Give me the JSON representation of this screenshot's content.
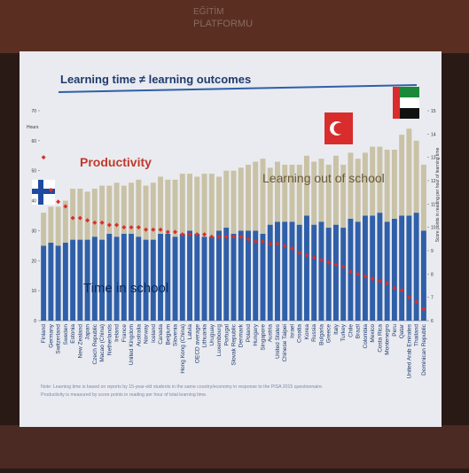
{
  "header_logo": [
    "EĞİTİM",
    "PLATFORMU"
  ],
  "chart_data": {
    "type": "bar",
    "title": "Learning time ≠ learning outcomes",
    "y_label": "Hours",
    "y2_label": "Score points in reading per hour of learning time",
    "annotations": [
      "Productivity",
      "Learning out of school",
      "Time in school"
    ],
    "note": [
      "Note: Learning time is based on reports by 15-year-old students in the same country/economy in response to the PISA 2015 questionnaire.",
      "Productivity is measured by score points in reading per hour of total learning time."
    ],
    "categories": [
      "Finland",
      "Germany",
      "Switzerland",
      "Sweden",
      "Estonia",
      "New Zealand",
      "Japan",
      "Czech Republic",
      "Macao (China)",
      "Netherlands",
      "Ireland",
      "France",
      "United Kingdom",
      "Australia",
      "Norway",
      "Iceland",
      "Canada",
      "Belgium",
      "Slovenia",
      "Hong Kong (China)",
      "Latvia",
      "OECD average",
      "Lithuania",
      "Uruguay",
      "Luxembourg",
      "Portugal",
      "Slovak Republic",
      "Denmark",
      "Poland",
      "Hungary",
      "Singapore",
      "Austria",
      "United States",
      "Chinese Taipei",
      "Israel",
      "Croatia",
      "Korea",
      "Russia",
      "Bulgaria",
      "Greece",
      "Italy",
      "Turkey",
      "Chile",
      "Brazil",
      "Colombia",
      "Mexico",
      "Costa Rica",
      "Montenegro",
      "Peru",
      "Qatar",
      "United Arab Emirates",
      "Thailand",
      "Dominican Republic"
    ],
    "series": [
      {
        "name": "Time in school",
        "color": "#2f5fa8",
        "values": [
          25,
          26,
          25,
          26,
          27,
          27,
          27,
          28,
          27,
          29,
          28,
          29,
          29,
          28,
          27,
          27,
          29,
          29,
          28,
          29,
          30,
          29,
          28,
          28,
          30,
          31,
          29,
          30,
          30,
          30,
          29,
          32,
          33,
          33,
          33,
          32,
          35,
          32,
          33,
          31,
          32,
          31,
          34,
          33,
          35,
          35,
          36,
          33,
          34,
          35,
          35,
          36,
          30
        ]
      },
      {
        "name": "Learning out of school",
        "color": "#c9c2a6",
        "values": [
          11,
          12,
          13,
          14,
          17,
          17,
          16,
          16,
          18,
          16,
          18,
          16,
          17,
          19,
          18,
          19,
          19,
          18,
          19,
          20,
          19,
          19,
          21,
          21,
          18,
          19,
          21,
          21,
          22,
          23,
          25,
          19,
          20,
          19,
          19,
          20,
          20,
          21,
          21,
          21,
          23,
          21,
          22,
          21,
          21,
          23,
          22,
          24,
          23,
          27,
          29,
          24,
          22
        ]
      },
      {
        "name": "Productivity",
        "color": "#d9302b",
        "axis": "y2",
        "values": [
          13,
          11.6,
          11.1,
          10.9,
          10.4,
          10.4,
          10.3,
          10.2,
          10.2,
          10.1,
          10.1,
          10,
          10,
          10,
          9.9,
          9.9,
          9.9,
          9.8,
          9.8,
          9.7,
          9.7,
          9.7,
          9.7,
          9.6,
          9.6,
          9.6,
          9.6,
          9.6,
          9.5,
          9.4,
          9.4,
          9.3,
          9.3,
          9.2,
          9.1,
          8.9,
          8.8,
          8.7,
          8.6,
          8.5,
          8.4,
          8.3,
          8.1,
          8,
          7.9,
          7.8,
          7.7,
          7.6,
          7.4,
          7.3,
          7,
          6.8,
          6.5
        ]
      }
    ],
    "ylim": [
      0,
      70
    ],
    "yticks": [
      0,
      10,
      20,
      30,
      40,
      50,
      60,
      70
    ],
    "y2lim": [
      6,
      15
    ],
    "y2ticks": [
      6,
      7,
      8,
      9,
      10,
      11,
      12,
      13,
      14,
      15
    ]
  }
}
